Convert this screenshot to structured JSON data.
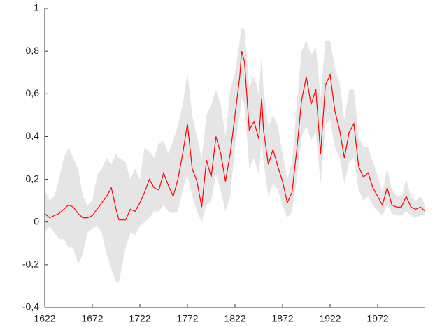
{
  "chart_data": {
    "type": "line",
    "x": [
      1622,
      1627,
      1632,
      1637,
      1642,
      1647,
      1652,
      1657,
      1662,
      1667,
      1672,
      1677,
      1682,
      1687,
      1692,
      1697,
      1700,
      1707,
      1712,
      1717,
      1722,
      1727,
      1732,
      1737,
      1742,
      1747,
      1752,
      1757,
      1762,
      1767,
      1772,
      1777,
      1782,
      1787,
      1792,
      1797,
      1802,
      1807,
      1812,
      1817,
      1822,
      1827,
      1829,
      1832,
      1837,
      1842,
      1847,
      1850,
      1852,
      1857,
      1862,
      1867,
      1872,
      1877,
      1882,
      1887,
      1892,
      1897,
      1902,
      1907,
      1912,
      1917,
      1922,
      1927,
      1932,
      1937,
      1942,
      1947,
      1952,
      1957,
      1962,
      1967,
      1972,
      1977,
      1982,
      1987,
      1992,
      1997,
      2002,
      2007,
      2012,
      2017,
      2022
    ],
    "series": [
      {
        "color": "#ff0000",
        "values": [
          0.04,
          0.02,
          0.03,
          0.04,
          0.06,
          0.08,
          0.07,
          0.04,
          0.02,
          0.02,
          0.03,
          0.06,
          0.09,
          0.12,
          0.16,
          0.06,
          0.01,
          0.01,
          0.06,
          0.05,
          0.09,
          0.14,
          0.2,
          0.16,
          0.15,
          0.23,
          0.17,
          0.12,
          0.2,
          0.32,
          0.46,
          0.25,
          0.19,
          0.07,
          0.29,
          0.21,
          0.4,
          0.32,
          0.19,
          0.32,
          0.5,
          0.68,
          0.8,
          0.75,
          0.43,
          0.47,
          0.39,
          0.58,
          0.43,
          0.27,
          0.34,
          0.26,
          0.19,
          0.09,
          0.14,
          0.34,
          0.57,
          0.68,
          0.55,
          0.62,
          0.32,
          0.64,
          0.69,
          0.52,
          0.43,
          0.3,
          0.42,
          0.46,
          0.26,
          0.21,
          0.23,
          0.16,
          0.12,
          0.08,
          0.16,
          0.08,
          0.07,
          0.07,
          0.12,
          0.07,
          0.06,
          0.07,
          0.05
        ]
      }
    ],
    "band": {
      "color": "#e5e5e5",
      "lower": [
        -0.05,
        -0.02,
        -0.05,
        -0.08,
        -0.08,
        -0.12,
        -0.12,
        -0.2,
        -0.15,
        -0.05,
        -0.03,
        -0.02,
        -0.05,
        -0.15,
        -0.22,
        -0.28,
        -0.28,
        -0.12,
        -0.05,
        -0.06,
        -0.02,
        0.0,
        0.02,
        0.05,
        0.05,
        0.08,
        0.05,
        0.04,
        0.05,
        0.15,
        0.22,
        0.12,
        0.05,
        0.0,
        0.08,
        0.1,
        0.22,
        0.15,
        0.05,
        0.12,
        0.35,
        0.5,
        0.58,
        0.55,
        0.25,
        0.3,
        0.22,
        0.38,
        0.28,
        0.12,
        0.18,
        0.15,
        0.08,
        0.02,
        0.05,
        0.2,
        0.4,
        0.45,
        0.38,
        0.42,
        0.18,
        0.45,
        0.48,
        0.35,
        0.3,
        0.18,
        0.28,
        0.3,
        0.15,
        0.1,
        0.12,
        0.08,
        0.05,
        0.03,
        0.08,
        0.04,
        0.03,
        0.03,
        0.05,
        0.03,
        0.02,
        0.03,
        0.03
      ],
      "upper": [
        0.15,
        0.1,
        0.12,
        0.2,
        0.3,
        0.35,
        0.3,
        0.25,
        0.12,
        0.08,
        0.1,
        0.22,
        0.25,
        0.3,
        0.27,
        0.32,
        0.3,
        0.28,
        0.2,
        0.25,
        0.2,
        0.35,
        0.33,
        0.3,
        0.37,
        0.38,
        0.32,
        0.38,
        0.45,
        0.55,
        0.7,
        0.5,
        0.4,
        0.3,
        0.5,
        0.55,
        0.62,
        0.55,
        0.4,
        0.62,
        0.7,
        0.85,
        0.91,
        0.9,
        0.63,
        0.68,
        0.6,
        0.78,
        0.62,
        0.45,
        0.5,
        0.45,
        0.32,
        0.2,
        0.28,
        0.55,
        0.8,
        0.85,
        0.78,
        0.82,
        0.58,
        0.85,
        0.85,
        0.72,
        0.65,
        0.48,
        0.62,
        0.62,
        0.4,
        0.35,
        0.35,
        0.28,
        0.22,
        0.14,
        0.25,
        0.15,
        0.12,
        0.12,
        0.2,
        0.12,
        0.1,
        0.12,
        0.08
      ]
    },
    "xlim": [
      1622,
      2022
    ],
    "xticks": [
      1622,
      1672,
      1722,
      1772,
      1822,
      1872,
      1922,
      1972
    ],
    "ylim": [
      -0.4,
      1
    ],
    "yticks": [
      {
        "value": -0.4,
        "label": "-0,4"
      },
      {
        "value": -0.2,
        "label": "-0,2"
      },
      0,
      {
        "value": 0.2,
        "label": "0,2"
      },
      {
        "value": 0.4,
        "label": "0,4"
      },
      {
        "value": 0.6,
        "label": "0,6"
      },
      {
        "value": 0.8,
        "label": "0,8"
      },
      1
    ],
    "grid": false
  }
}
